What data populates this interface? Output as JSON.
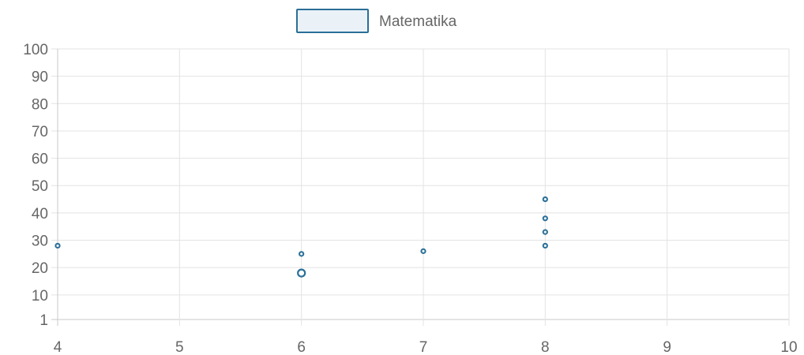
{
  "chart_data": {
    "type": "scatter",
    "title": "",
    "xlabel": "",
    "ylabel": "",
    "legend_position": "top",
    "grid": true,
    "xlim": [
      4,
      10
    ],
    "ylim": [
      1,
      100
    ],
    "x_ticks": [
      "4",
      "5",
      "6",
      "7",
      "8",
      "9",
      "10"
    ],
    "y_ticks": [
      "100",
      "90",
      "80",
      "70",
      "60",
      "50",
      "40",
      "30",
      "20",
      "10",
      "1"
    ],
    "series": [
      {
        "name": "Matematika",
        "color": "#2a6f97",
        "fill": "#eaf2f8",
        "points": [
          {
            "x": 4,
            "y": 28
          },
          {
            "x": 6,
            "y": 25
          },
          {
            "x": 6,
            "y": 18,
            "emphasis": true
          },
          {
            "x": 7,
            "y": 26
          },
          {
            "x": 8,
            "y": 45
          },
          {
            "x": 8,
            "y": 38
          },
          {
            "x": 8,
            "y": 33
          },
          {
            "x": 8,
            "y": 28
          }
        ]
      }
    ]
  }
}
